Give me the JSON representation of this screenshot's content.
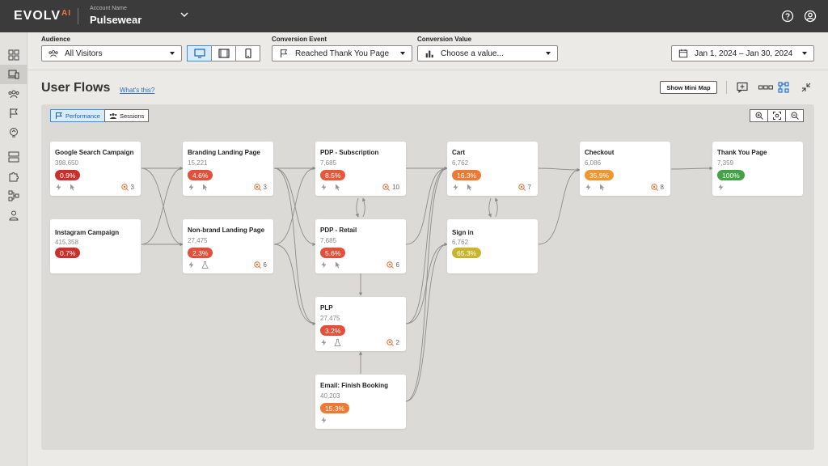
{
  "header": {
    "logo_text": "EVOLV",
    "logo_suffix": "AI",
    "account_label": "Account Name",
    "account_name": "Pulsewear"
  },
  "filters": {
    "audience": {
      "label": "Audience",
      "value": "All Visitors"
    },
    "conversion_event": {
      "label": "Conversion Event",
      "value": "Reached Thank You Page"
    },
    "conversion_value": {
      "label": "Conversion Value",
      "placeholder": "Choose a value..."
    },
    "date_range": "Jan 1, 2024 – Jan 30, 2024",
    "device_selected": "desktop"
  },
  "page": {
    "title": "User Flows",
    "whats_this": "What's this?",
    "mini_map_label": "Show Mini Map"
  },
  "toggles": {
    "performance": "Performance",
    "sessions": "Sessions"
  },
  "nodes": [
    {
      "title": "Google Search Campaign",
      "count": "398,650",
      "pct": "0.9%",
      "pct_color": "#c9302c",
      "tests": "3",
      "show_icons": true
    },
    {
      "title": "Instagram Campaign",
      "count": "415,358",
      "pct": "0.7%",
      "pct_color": "#c9302c",
      "tests": "",
      "show_icons": false
    },
    {
      "title": "Branding Landing Page",
      "count": "15,221",
      "pct": "4.6%",
      "pct_color": "#e0503a",
      "tests": "3",
      "show_icons": true
    },
    {
      "title": "Non-brand Landing Page",
      "count": "27,475",
      "pct": "2.3%",
      "pct_color": "#e0503a",
      "tests": "6",
      "show_icons": true
    },
    {
      "title": "PDP - Subscription",
      "count": "7,685",
      "pct": "8.5%",
      "pct_color": "#e5593a",
      "tests": "10",
      "show_icons": true
    },
    {
      "title": "PDP - Retail",
      "count": "7,685",
      "pct": "5.6%",
      "pct_color": "#e0503a",
      "tests": "6",
      "show_icons": true
    },
    {
      "title": "PLP",
      "count": "27,475",
      "pct": "3.2%",
      "pct_color": "#e0503a",
      "tests": "2",
      "show_icons": true
    },
    {
      "title": "Email: Finish Booking",
      "count": "40,203",
      "pct": "15.3%",
      "pct_color": "#ec7a33",
      "tests": "",
      "show_icons": true
    },
    {
      "title": "Cart",
      "count": "6,762",
      "pct": "16.3%",
      "pct_color": "#ec7a33",
      "tests": "7",
      "show_icons": true
    },
    {
      "title": "Sign in",
      "count": "6,762",
      "pct": "65.3%",
      "pct_color": "#c9b52c",
      "tests": "",
      "show_icons": false
    },
    {
      "title": "Checkout",
      "count": "6,086",
      "pct": "35.9%",
      "pct_color": "#f0962e",
      "tests": "8",
      "show_icons": true
    },
    {
      "title": "Thank You Page",
      "count": "7,359",
      "pct": "100%",
      "pct_color": "#43a148",
      "tests": "",
      "show_icons": true
    }
  ]
}
